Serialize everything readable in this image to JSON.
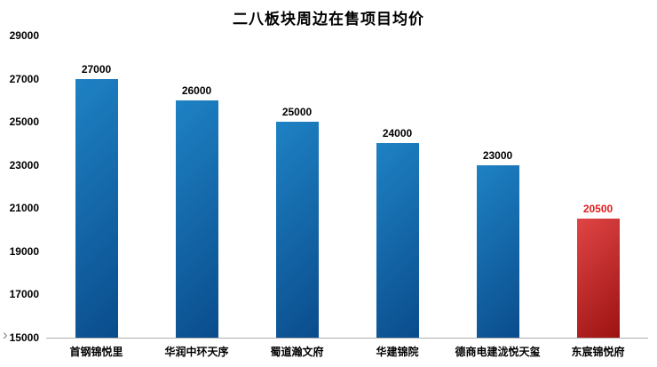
{
  "chart_data": {
    "type": "bar",
    "title": "二八板块周边在售项目均价",
    "categories": [
      "首钢锦悦里",
      "华润中环天序",
      "蜀道瀚文府",
      "华建锦院",
      "德商电建泷悦天玺",
      "东宸锦悦府"
    ],
    "values": [
      27000,
      26000,
      25000,
      24000,
      23000,
      20500
    ],
    "value_labels": [
      "27000",
      "26000",
      "25000",
      "24000",
      "23000",
      "20500"
    ],
    "bar_color_keys": [
      "blue",
      "blue",
      "blue",
      "blue",
      "blue",
      "red"
    ],
    "label_colors": [
      "#000000",
      "#000000",
      "#000000",
      "#000000",
      "#000000",
      "#e31c1c"
    ],
    "ylim": [
      15000,
      29000
    ],
    "yticks": [
      15000,
      17000,
      19000,
      21000,
      23000,
      25000,
      27000,
      29000
    ],
    "ytick_step": 2000,
    "grid": false,
    "legend": "none"
  },
  "colors": {
    "blue_light": "#1e82c4",
    "blue_dark": "#0a4c8c",
    "red_light": "#e04545",
    "red_dark": "#9c1212",
    "axis_line": "#b0b0b0",
    "title_text": "#000000"
  },
  "nav": {
    "chevron": "›"
  }
}
